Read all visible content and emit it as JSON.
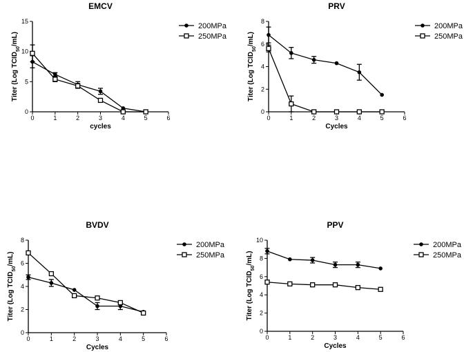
{
  "chart_data": [
    {
      "type": "line",
      "title": "EMCV",
      "xlabel": "cycles",
      "ylabel_pre": "Titer (Log TCID",
      "ylabel_sub": "50",
      "ylabel_post": "/mL)",
      "xlim": [
        0,
        6
      ],
      "ylim": [
        0,
        15
      ],
      "xticks": [
        0,
        1,
        2,
        3,
        4,
        5,
        6
      ],
      "yticks": [
        0,
        5,
        10,
        15
      ],
      "legend_position": "top-right",
      "series": [
        {
          "name": "200MPa",
          "marker": "circle",
          "x": [
            0,
            1,
            2,
            3,
            4,
            5
          ],
          "y": [
            8.3,
            6.2,
            4.5,
            3.4,
            0.6,
            0
          ],
          "err": [
            1.0,
            0.3,
            0.5,
            0.5,
            0,
            0
          ]
        },
        {
          "name": "250MPa",
          "marker": "square",
          "x": [
            0,
            1,
            2,
            3,
            4,
            5
          ],
          "y": [
            9.7,
            5.4,
            4.3,
            1.9,
            0,
            0
          ],
          "err": [
            1.4,
            0.4,
            0.4,
            0,
            0,
            0
          ]
        }
      ]
    },
    {
      "type": "line",
      "title": "PRV",
      "xlabel": "Cycles",
      "ylabel_pre": "Titer (Log TCID",
      "ylabel_sub": "50",
      "ylabel_post": "/mL)",
      "xlim": [
        0,
        6
      ],
      "ylim": [
        0,
        8
      ],
      "xticks": [
        0,
        1,
        2,
        3,
        4,
        5,
        6
      ],
      "yticks": [
        0,
        2,
        4,
        6,
        8
      ],
      "legend_position": "top-right",
      "series": [
        {
          "name": "200MPa",
          "marker": "circle",
          "x": [
            0,
            1,
            2,
            3,
            4,
            5
          ],
          "y": [
            6.8,
            5.2,
            4.6,
            4.3,
            3.5,
            1.5
          ],
          "err": [
            0.7,
            0.5,
            0.3,
            0,
            0.7,
            0
          ]
        },
        {
          "name": "250MPa",
          "marker": "square",
          "x": [
            0,
            1,
            2,
            3,
            4,
            5
          ],
          "y": [
            5.6,
            0.7,
            0,
            0,
            0,
            0
          ],
          "err": [
            0.3,
            0.7,
            0,
            0,
            0,
            0
          ]
        }
      ]
    },
    {
      "type": "line",
      "title": "BVDV",
      "xlabel": "Cycles",
      "ylabel_pre": "Titer (Log TCID",
      "ylabel_sub": "50",
      "ylabel_post": "/mL)",
      "xlim": [
        0,
        6
      ],
      "ylim": [
        0,
        8
      ],
      "xticks": [
        0,
        1,
        2,
        3,
        4,
        5,
        6
      ],
      "yticks": [
        0,
        2,
        4,
        6,
        8
      ],
      "legend_position": "top-right",
      "series": [
        {
          "name": "200MPa",
          "marker": "circle",
          "x": [
            0,
            1,
            2,
            3,
            4,
            5
          ],
          "y": [
            4.8,
            4.3,
            3.7,
            2.3,
            2.3,
            1.8
          ],
          "err": [
            0.2,
            0.3,
            0,
            0.3,
            0.3,
            0
          ]
        },
        {
          "name": "250MPa",
          "marker": "square",
          "x": [
            0,
            1,
            2,
            3,
            4,
            5
          ],
          "y": [
            6.9,
            5.1,
            3.2,
            3.0,
            2.6,
            1.7
          ],
          "err": [
            0.1,
            0,
            0,
            0,
            0,
            0
          ]
        }
      ]
    },
    {
      "type": "line",
      "title": "PPV",
      "xlabel": "Cycles",
      "ylabel_pre": "Titer (Log TCID",
      "ylabel_sub": "50",
      "ylabel_post": "/mL)",
      "xlim": [
        0,
        6
      ],
      "ylim": [
        0,
        10
      ],
      "xticks": [
        0,
        1,
        2,
        3,
        4,
        5,
        6
      ],
      "yticks": [
        0,
        2,
        4,
        6,
        8,
        10
      ],
      "legend_position": "top-right",
      "series": [
        {
          "name": "200MPa",
          "marker": "circle",
          "x": [
            0,
            1,
            2,
            3,
            4,
            5
          ],
          "y": [
            8.8,
            7.9,
            7.8,
            7.3,
            7.3,
            6.9
          ],
          "err": [
            0.3,
            0,
            0.3,
            0.3,
            0.3,
            0
          ]
        },
        {
          "name": "250MPa",
          "marker": "square",
          "x": [
            0,
            1,
            2,
            3,
            4,
            5
          ],
          "y": [
            5.4,
            5.2,
            5.1,
            5.1,
            4.8,
            4.6
          ],
          "err": [
            0,
            0,
            0,
            0,
            0,
            0
          ]
        }
      ]
    }
  ]
}
